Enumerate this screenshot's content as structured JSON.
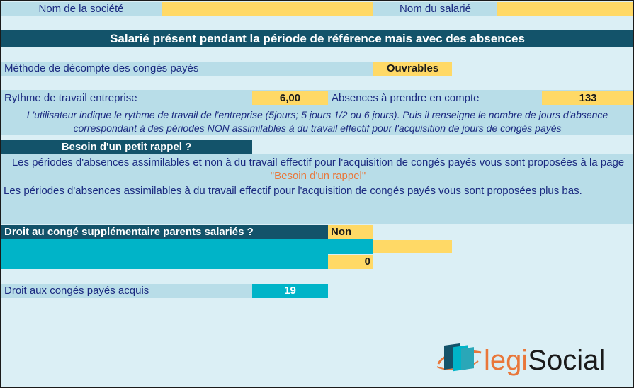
{
  "header": {
    "company_label": "Nom de la société",
    "company_value": "",
    "employee_label": "Nom du salarié",
    "employee_value": ""
  },
  "title": "Salarié présent pendant la période de référence mais avec des absences",
  "method": {
    "label": "Méthode de décompte des congés payés",
    "value": "Ouvrables"
  },
  "rhythm": {
    "label": "Rythme de travail entreprise",
    "value": "6,00",
    "absences_label": "Absences à prendre en compte",
    "absences_value": "133"
  },
  "instruction_note": "L'utilisateur indique le rythme de travail de l'entreprise (5jours; 5 jours 1/2 ou 6 jours).  Puis il renseigne le nombre de jours d'absence correspondant à des périodes NON assimilables à du travail effectif pour l'acquisition de jours de congés payés",
  "reminder": {
    "header": "Besoin d'un petit rappel ?",
    "line1_before": "Les périodes d'absences assimilables et non  à du travail effectif pour l'acquisition de congés payés vous sont proposées à la page ",
    "line1_link": "\"Besoin d'un rappel\"",
    "line2": "Les périodes d'absences  assimilables à du travail effectif pour l'acquisition de congés payés vous sont proposées plus bas."
  },
  "parents": {
    "label": "Droit au congé supplémentaire parents salariés ?",
    "value": "Non",
    "extra_value": "",
    "count_value": "0"
  },
  "acquired": {
    "label": "Droit aux congés payés acquis",
    "value": "19"
  },
  "logo": {
    "text_prefix": "legi",
    "text_suffix": "Social"
  },
  "colors": {
    "accent_orange": "#e9773a",
    "dark_teal": "#13536a",
    "teal": "#00b4c8",
    "yellow": "#ffd966",
    "label_blue": "#b8dde8",
    "text_blue": "#1b2a80"
  }
}
